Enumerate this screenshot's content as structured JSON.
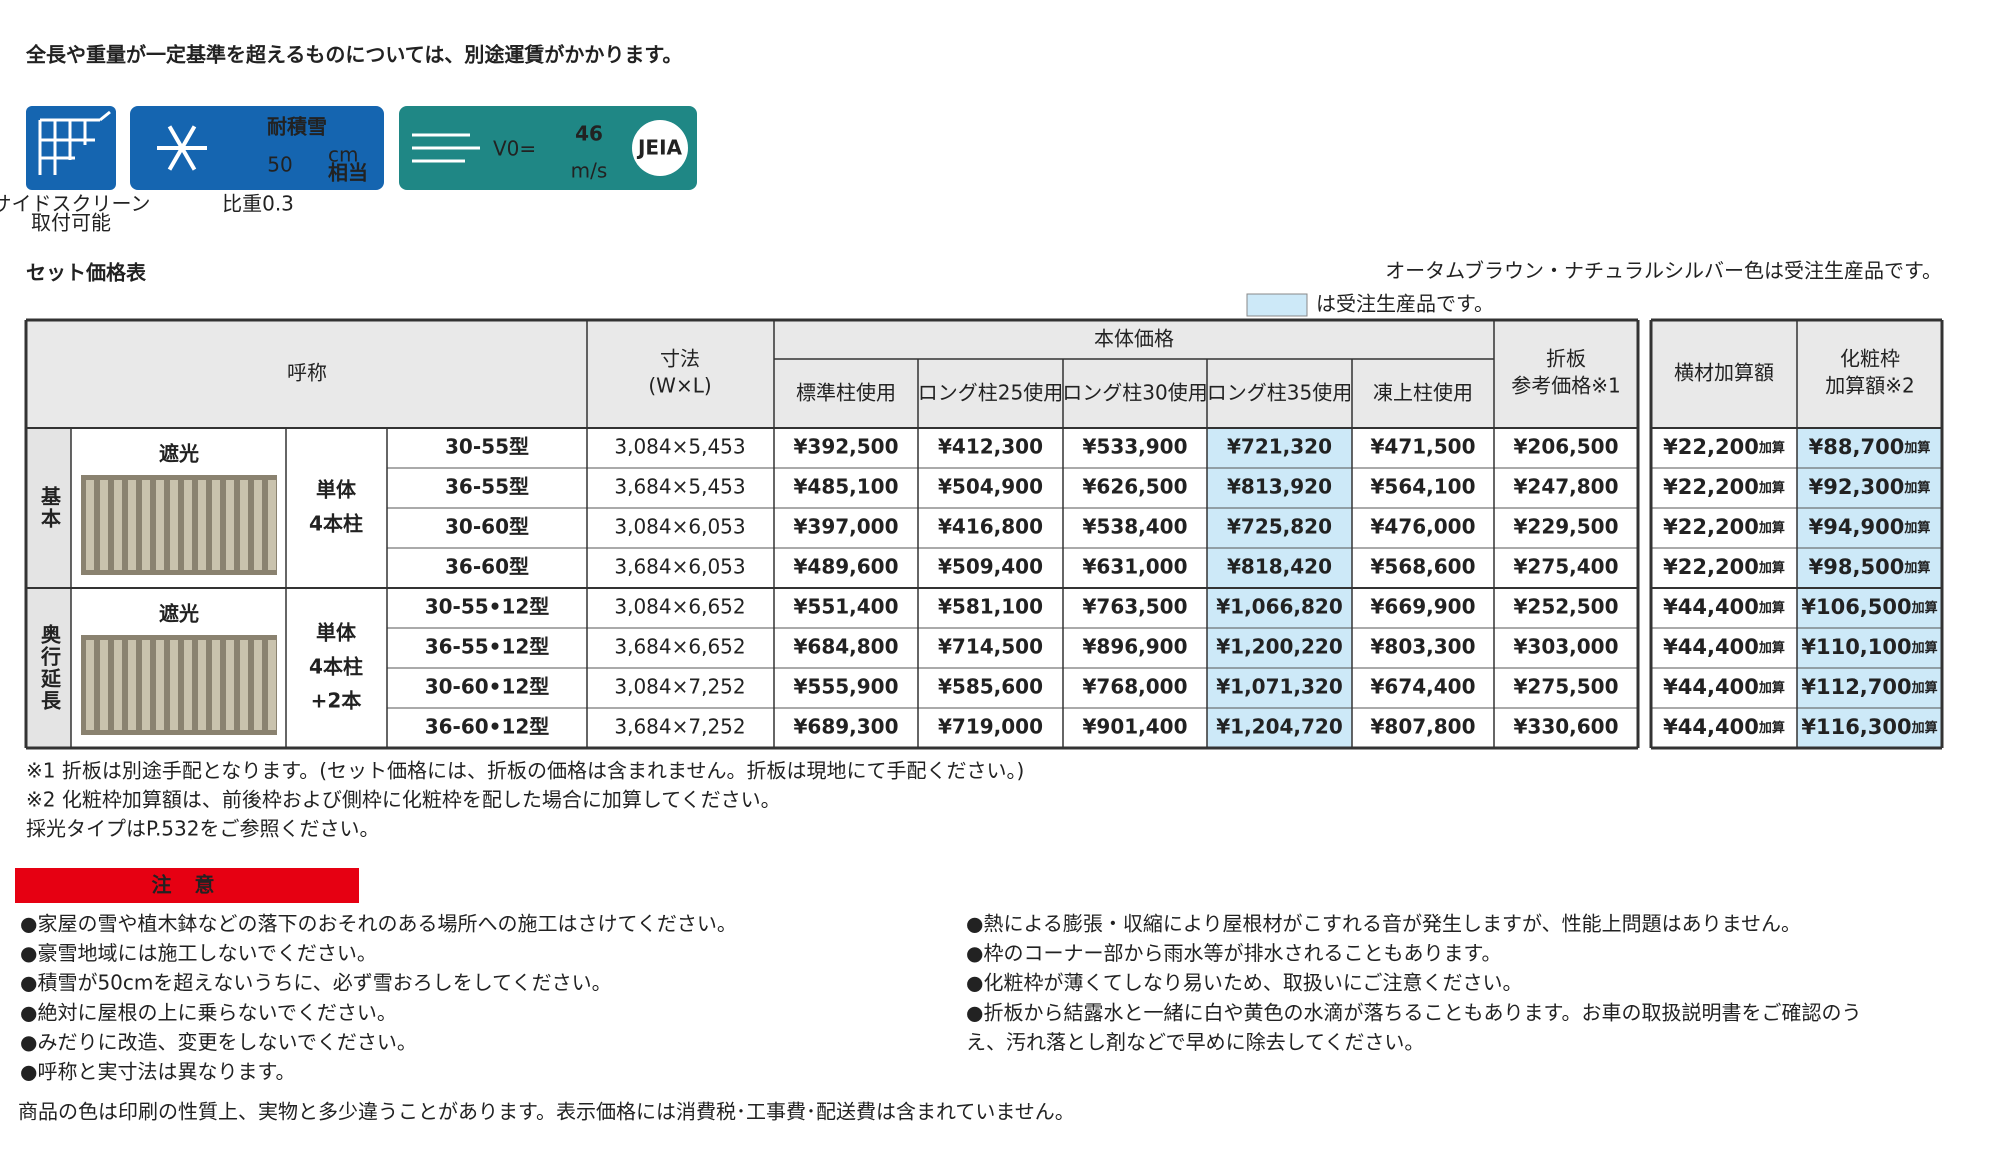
{
  "header": {
    "title": "全長や重量が一定基準を超えるものについては、別途運賃がかかります。"
  },
  "badges": {
    "side_screen": {
      "label_lines": [
        "サイドスクリーン",
        "取付可能"
      ]
    },
    "snow": {
      "label": "耐積雪",
      "value": "50",
      "unit": "cm",
      "unit2": "相当",
      "note": "比重0.3"
    },
    "wind": {
      "prefix": "V0=",
      "value": "46",
      "unit": "m/s",
      "logo": "JEIA"
    }
  },
  "section": {
    "title": "セット価格表",
    "notes": [
      "オータムブラウン・ナチュラルシルバー色は受注生産品です。",
      "は受注生産品です。"
    ]
  },
  "table": {
    "headers": {
      "name": "呼称",
      "size": [
        "寸法",
        "(W×L)"
      ],
      "body_price": "本体価格",
      "price_columns": [
        "標準柱使用",
        "ロング柱25使用",
        "ロング柱30使用",
        "ロング柱35使用",
        "凍上柱使用"
      ],
      "orihan": [
        "折板",
        "参考価格※1"
      ],
      "yokozai": "横材加算額",
      "keshou": [
        "化粧枠",
        "加算額※2"
      ]
    },
    "addition_suffix": "加算",
    "groups": [
      {
        "label": "基本",
        "image_label": "遮光",
        "type_lines": [
          "単体",
          "4本柱"
        ],
        "rows": [
          [
            "30-55型",
            "3,084×5,453",
            "¥392,500",
            "¥412,300",
            "¥533,900",
            "¥721,320",
            "¥471,500",
            "¥206,500",
            "¥22,200",
            "¥88,700"
          ],
          [
            "36-55型",
            "3,684×5,453",
            "¥485,100",
            "¥504,900",
            "¥626,500",
            "¥813,920",
            "¥564,100",
            "¥247,800",
            "¥22,200",
            "¥92,300"
          ],
          [
            "30-60型",
            "3,084×6,053",
            "¥397,000",
            "¥416,800",
            "¥538,400",
            "¥725,820",
            "¥476,000",
            "¥229,500",
            "¥22,200",
            "¥94,900"
          ],
          [
            "36-60型",
            "3,684×6,053",
            "¥489,600",
            "¥509,400",
            "¥631,000",
            "¥818,420",
            "¥568,600",
            "¥275,400",
            "¥22,200",
            "¥98,500"
          ]
        ]
      },
      {
        "label": "奥行延長",
        "image_label": "遮光",
        "type_lines": [
          "単体",
          "4本柱",
          "+2本"
        ],
        "rows": [
          [
            "30-55•12型",
            "3,084×6,652",
            "¥551,400",
            "¥581,100",
            "¥763,500",
            "¥1,066,820",
            "¥669,900",
            "¥252,500",
            "¥44,400",
            "¥106,500"
          ],
          [
            "36-55•12型",
            "3,684×6,652",
            "¥684,800",
            "¥714,500",
            "¥896,900",
            "¥1,200,220",
            "¥803,300",
            "¥303,000",
            "¥44,400",
            "¥110,100"
          ],
          [
            "30-60•12型",
            "3,084×7,252",
            "¥555,900",
            "¥585,600",
            "¥768,000",
            "¥1,071,320",
            "¥674,400",
            "¥275,500",
            "¥44,400",
            "¥112,700"
          ],
          [
            "36-60•12型",
            "3,684×7,252",
            "¥689,300",
            "¥719,000",
            "¥901,400",
            "¥1,204,720",
            "¥807,800",
            "¥330,600",
            "¥44,400",
            "¥116,300"
          ]
        ]
      }
    ]
  },
  "footnotes": [
    "※1 折板は別途手配となります。(セット価格には、折板の価格は含まれません。折板は現地にて手配ください。)",
    "※2 化粧枠加算額は、前後枠および側枠に化粧枠を配した場合に加算してください。",
    "採光タイプはP.532をご参照ください。"
  ],
  "caution": {
    "title": "注 意",
    "left": [
      "●家屋の雪や植木鉢などの落下のおそれのある場所への施工はさけてください。",
      "●豪雪地域には施工しないでください。",
      "●積雪が50cmを超えないうちに、必ず雪おろしをしてください。",
      "●絶対に屋根の上に乗らないでください。",
      "●みだりに改造、変更をしないでください。",
      "●呼称と実寸法は異なります。"
    ],
    "right": [
      "●熱による膨張・収縮により屋根材がこすれる音が発生しますが、性能上問題はありません。",
      "●枠のコーナー部から雨水等が排水されることもあります。",
      "●化粧枠が薄くてしなり易いため、取扱いにご注意ください。",
      "●折板から結露水と一緒に白や黄色の水滴が落ちることもあります。お車の取扱説明書をご確認のう",
      "え、汚れ落とし剤などで早めに除去してください。"
    ]
  },
  "footer": "商品の色は印刷の性質上、実物と多少違うことがあります。表示価格には消費税･工事費･配送費は含まれていません。"
}
